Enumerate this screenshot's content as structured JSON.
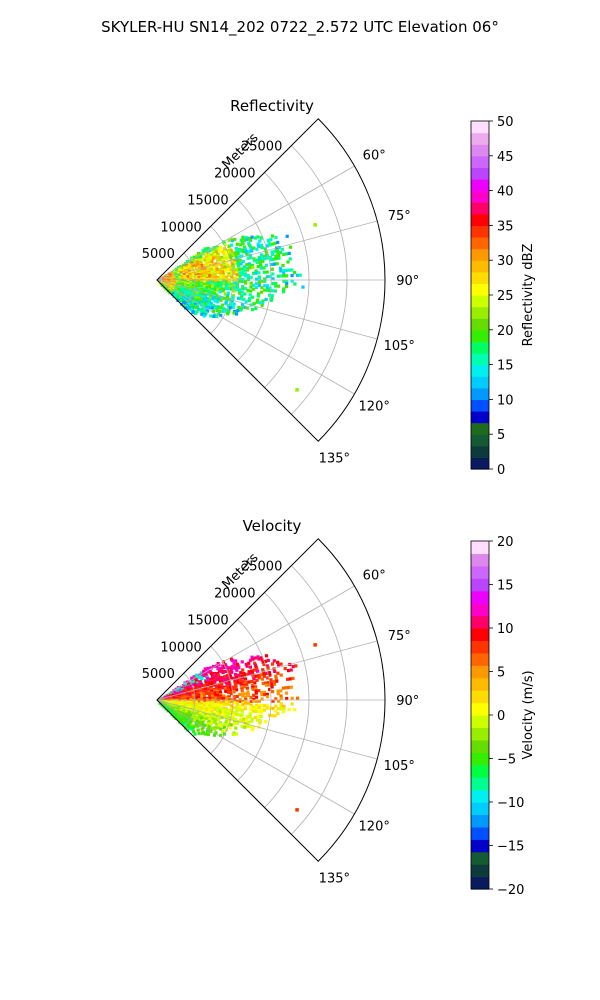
{
  "figure": {
    "suptitle": "SKYLER-HU  SN14_202  0722_2.572 UTC Elevation 06°"
  },
  "chart_data": [
    {
      "type": "heatmap",
      "projection": "polar-sector",
      "title": "Reflectivity",
      "radial_axis_label": "Meters",
      "radial_ticks": [
        5000,
        10000,
        15000,
        20000,
        25000
      ],
      "radial_tick_labels": [
        "5000",
        "10000",
        "15000",
        "20000",
        "25000"
      ],
      "rlim": [
        0,
        30000
      ],
      "angle_ticks": [
        60,
        75,
        90,
        105,
        120,
        135
      ],
      "angle_tick_labels": [
        "60°",
        "75°",
        "90°",
        "105°",
        "120°",
        "135°"
      ],
      "theta_range_deg": [
        45,
        135
      ],
      "grid": true,
      "colorbar": {
        "label": "Reflectivity dBZ",
        "range": [
          0,
          50
        ],
        "ticks": [
          0,
          5,
          10,
          15,
          20,
          25,
          30,
          35,
          40,
          45,
          50
        ],
        "tick_labels": [
          "0",
          "5",
          "10",
          "15",
          "20",
          "25",
          "30",
          "35",
          "40",
          "45",
          "50"
        ],
        "colors": [
          "#0a1a5e",
          "#0d3b3b",
          "#145a32",
          "#1e6b1e",
          "#0000c8",
          "#0050ff",
          "#0099ff",
          "#00ccff",
          "#00f0f0",
          "#00ffb0",
          "#00ff60",
          "#33ee00",
          "#66dd00",
          "#99ee00",
          "#ccff00",
          "#ffff00",
          "#ffdd00",
          "#ffbb00",
          "#ff9900",
          "#ff6600",
          "#ff3300",
          "#ff0000",
          "#ff0066",
          "#ff00cc",
          "#ee00ff",
          "#bb44ff",
          "#cc66ff",
          "#dd88ee",
          "#eeaaee",
          "#ffddff"
        ]
      },
      "echo_summary": {
        "azimuth_range_deg": [
          55,
          135
        ],
        "range_extent_m": [
          0,
          30000
        ],
        "values_range": [
          10,
          40
        ],
        "dominant_value_band": [
          20,
          30
        ]
      }
    },
    {
      "type": "heatmap",
      "projection": "polar-sector",
      "title": "Velocity",
      "radial_axis_label": "Meters",
      "radial_ticks": [
        5000,
        10000,
        15000,
        20000,
        25000
      ],
      "radial_tick_labels": [
        "5000",
        "10000",
        "15000",
        "20000",
        "25000"
      ],
      "rlim": [
        0,
        30000
      ],
      "angle_ticks": [
        60,
        75,
        90,
        105,
        120,
        135
      ],
      "angle_tick_labels": [
        "60°",
        "75°",
        "90°",
        "105°",
        "120°",
        "135°"
      ],
      "theta_range_deg": [
        45,
        135
      ],
      "grid": true,
      "colorbar": {
        "label": "Velocity (m/s)",
        "range": [
          -20,
          20
        ],
        "ticks": [
          -20,
          -15,
          -10,
          -5,
          0,
          5,
          10,
          15,
          20
        ],
        "tick_labels": [
          "−20",
          "−15",
          "−10",
          "−5",
          "0",
          "5",
          "10",
          "15",
          "20"
        ],
        "colors": [
          "#0a1a5e",
          "#0d3b3b",
          "#145a32",
          "#0000c8",
          "#0050ff",
          "#0099ff",
          "#00ccff",
          "#00f0f0",
          "#00ff90",
          "#00ff40",
          "#33ee00",
          "#66dd00",
          "#99ee00",
          "#ccff00",
          "#ffff00",
          "#ffdd00",
          "#ffbb00",
          "#ff9900",
          "#ff6600",
          "#ff3300",
          "#ff0000",
          "#ff0066",
          "#ff00cc",
          "#ee00ff",
          "#bb44ff",
          "#cc66ff",
          "#dd88ee",
          "#ffddff"
        ]
      },
      "echo_summary": {
        "azimuth_range_deg": [
          55,
          135
        ],
        "range_extent_m": [
          0,
          30000
        ],
        "values_range": [
          -10,
          12
        ],
        "approaching_sector_deg": [
          90,
          130
        ],
        "receding_sector_deg": [
          55,
          90
        ]
      }
    }
  ]
}
